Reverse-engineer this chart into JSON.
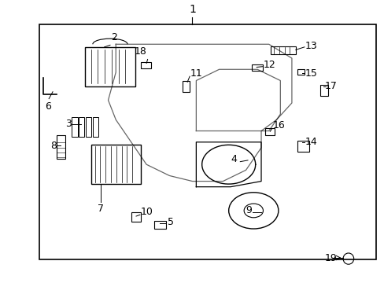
{
  "bg_color": "#ffffff",
  "border_color": "#000000",
  "line_color": "#000000",
  "text_color": "#000000",
  "fig_width": 4.89,
  "fig_height": 3.6,
  "dpi": 100,
  "border": [
    0.1,
    0.08,
    0.88,
    0.84
  ],
  "font_size_label": 9,
  "font_size_num": 10
}
